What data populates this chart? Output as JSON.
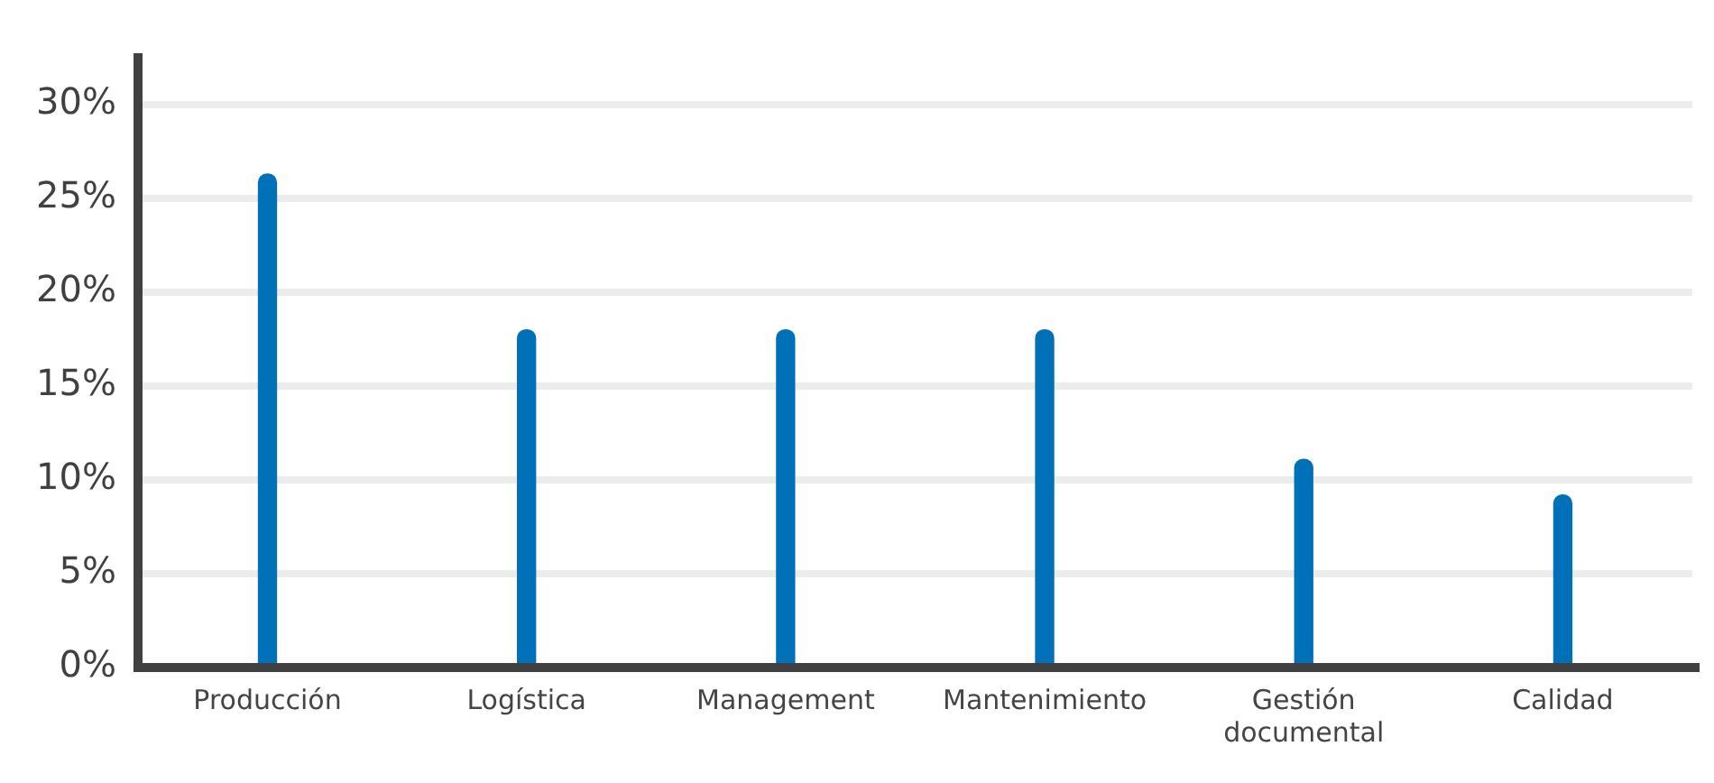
{
  "chart_data": {
    "type": "bar",
    "categories": [
      "Producción",
      "Logística",
      "Management",
      "Mantenimiento",
      "Gestión documental",
      "Calidad"
    ],
    "values": [
      26.3,
      18,
      18,
      18,
      11.1,
      9.2
    ],
    "color": "#0070b8",
    "ylim": [
      0,
      32.5
    ],
    "yticks": [
      {
        "value": 0,
        "label": "0%"
      },
      {
        "value": 5,
        "label": "5%"
      },
      {
        "value": 10,
        "label": "10%"
      },
      {
        "value": 15,
        "label": "15%"
      },
      {
        "value": 20,
        "label": "20%"
      },
      {
        "value": 25,
        "label": "25%"
      },
      {
        "value": 30,
        "label": "30%"
      }
    ],
    "grid": "y",
    "legend": false
  }
}
